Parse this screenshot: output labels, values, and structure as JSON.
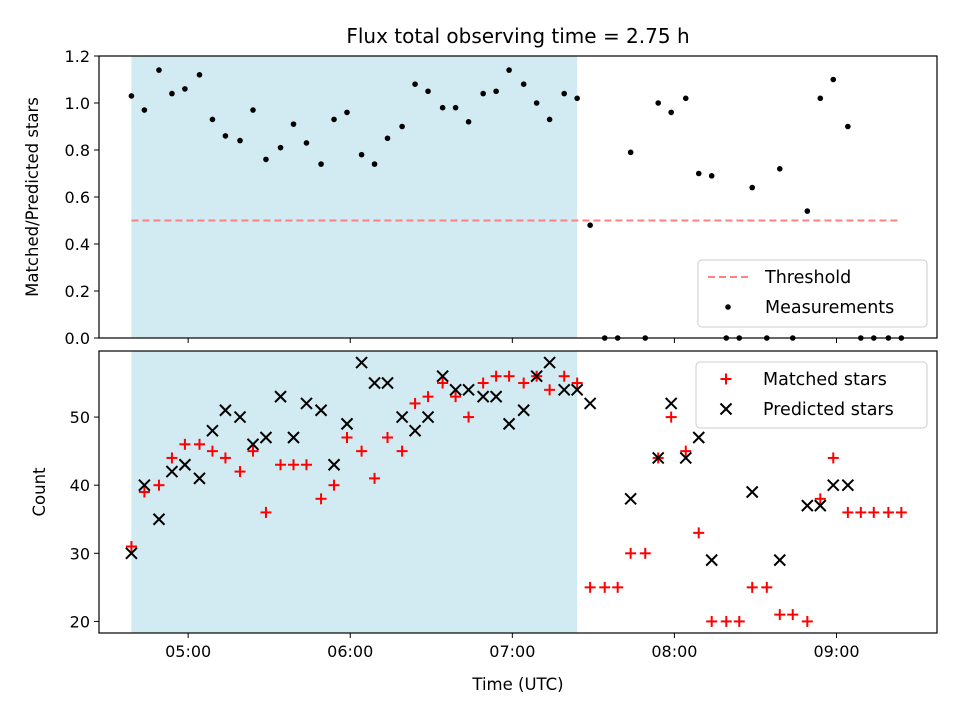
{
  "figure": {
    "title": "Flux total observing time = 2.75 h"
  },
  "colors": {
    "shade": "#add8e6",
    "threshold": "#ff8080",
    "measurements": "#000000",
    "matched": "#ff0000",
    "predicted": "#000000"
  },
  "chart_data": [
    {
      "type": "scatter",
      "ylabel": "Matched/Predicted stars",
      "ylim": [
        0,
        1.2
      ],
      "yticks": [
        0.0,
        0.2,
        0.4,
        0.6,
        0.8,
        1.0,
        1.2
      ],
      "ytick_labels": [
        "0.0",
        "0.2",
        "0.4",
        "0.6",
        "0.8",
        "1.0",
        "1.2"
      ],
      "xlim_hours": [
        4.45,
        9.62
      ],
      "xticks_hours": [
        5,
        6,
        7,
        8,
        9
      ],
      "xtick_labels_shown": false,
      "shaded_span_hours": [
        4.65,
        7.4
      ],
      "grid": false,
      "legend": {
        "placement": "lower right",
        "entries": [
          "Threshold",
          "Measurements"
        ]
      },
      "threshold": {
        "name": "Threshold",
        "value": 0.5,
        "x_range_hours": [
          4.65,
          9.38
        ],
        "style": "dashed"
      },
      "series": [
        {
          "name": "Measurements",
          "marker": "dot",
          "points": [
            [
              4.65,
              1.03
            ],
            [
              4.73,
              0.97
            ],
            [
              4.82,
              1.14
            ],
            [
              4.9,
              1.04
            ],
            [
              4.98,
              1.06
            ],
            [
              5.07,
              1.12
            ],
            [
              5.15,
              0.93
            ],
            [
              5.23,
              0.86
            ],
            [
              5.32,
              0.84
            ],
            [
              5.4,
              0.97
            ],
            [
              5.48,
              0.76
            ],
            [
              5.57,
              0.81
            ],
            [
              5.65,
              0.91
            ],
            [
              5.73,
              0.83
            ],
            [
              5.82,
              0.74
            ],
            [
              5.9,
              0.93
            ],
            [
              5.98,
              0.96
            ],
            [
              6.07,
              0.78
            ],
            [
              6.15,
              0.74
            ],
            [
              6.23,
              0.85
            ],
            [
              6.32,
              0.9
            ],
            [
              6.4,
              1.08
            ],
            [
              6.48,
              1.05
            ],
            [
              6.57,
              0.98
            ],
            [
              6.65,
              0.98
            ],
            [
              6.73,
              0.92
            ],
            [
              6.82,
              1.04
            ],
            [
              6.9,
              1.05
            ],
            [
              6.98,
              1.14
            ],
            [
              7.07,
              1.08
            ],
            [
              7.15,
              1.0
            ],
            [
              7.23,
              0.93
            ],
            [
              7.32,
              1.04
            ],
            [
              7.4,
              1.02
            ],
            [
              7.48,
              0.48
            ],
            [
              7.57,
              0.0
            ],
            [
              7.65,
              0.0
            ],
            [
              7.73,
              0.79
            ],
            [
              7.82,
              0.0
            ],
            [
              7.9,
              1.0
            ],
            [
              7.98,
              0.96
            ],
            [
              8.07,
              1.02
            ],
            [
              8.15,
              0.7
            ],
            [
              8.23,
              0.69
            ],
            [
              8.32,
              0.0
            ],
            [
              8.4,
              0.0
            ],
            [
              8.48,
              0.64
            ],
            [
              8.57,
              0.0
            ],
            [
              8.65,
              0.72
            ],
            [
              8.73,
              0.0
            ],
            [
              8.82,
              0.54
            ],
            [
              8.9,
              1.02
            ],
            [
              8.98,
              1.1
            ],
            [
              9.07,
              0.9
            ],
            [
              9.15,
              0.0
            ],
            [
              9.23,
              0.0
            ],
            [
              9.32,
              0.0
            ],
            [
              9.4,
              0.0
            ]
          ]
        }
      ]
    },
    {
      "type": "scatter",
      "xlabel": "Time (UTC)",
      "ylabel": "Count",
      "ylim": [
        18.3,
        59.7
      ],
      "yticks": [
        20,
        30,
        40,
        50
      ],
      "ytick_labels": [
        "20",
        "30",
        "40",
        "50"
      ],
      "xlim_hours": [
        4.45,
        9.62
      ],
      "xticks_hours": [
        5,
        6,
        7,
        8,
        9
      ],
      "xtick_labels": [
        "05:00",
        "06:00",
        "07:00",
        "08:00",
        "09:00"
      ],
      "shaded_span_hours": [
        4.65,
        7.4
      ],
      "grid": false,
      "legend": {
        "placement": "upper right",
        "entries": [
          "Matched stars",
          "Predicted stars"
        ]
      },
      "series": [
        {
          "name": "Matched stars",
          "marker": "plus",
          "points": [
            [
              4.65,
              31
            ],
            [
              4.73,
              39
            ],
            [
              4.82,
              40
            ],
            [
              4.9,
              44
            ],
            [
              4.98,
              46
            ],
            [
              5.07,
              46
            ],
            [
              5.15,
              45
            ],
            [
              5.23,
              44
            ],
            [
              5.32,
              42
            ],
            [
              5.4,
              45
            ],
            [
              5.48,
              36
            ],
            [
              5.57,
              43
            ],
            [
              5.65,
              43
            ],
            [
              5.73,
              43
            ],
            [
              5.82,
              38
            ],
            [
              5.9,
              40
            ],
            [
              5.98,
              47
            ],
            [
              6.07,
              45
            ],
            [
              6.15,
              41
            ],
            [
              6.23,
              47
            ],
            [
              6.32,
              45
            ],
            [
              6.4,
              52
            ],
            [
              6.48,
              53
            ],
            [
              6.57,
              55
            ],
            [
              6.65,
              53
            ],
            [
              6.73,
              50
            ],
            [
              6.82,
              55
            ],
            [
              6.9,
              56
            ],
            [
              6.98,
              56
            ],
            [
              7.07,
              55
            ],
            [
              7.15,
              56
            ],
            [
              7.23,
              54
            ],
            [
              7.32,
              56
            ],
            [
              7.4,
              55
            ],
            [
              7.48,
              25
            ],
            [
              7.57,
              25
            ],
            [
              7.65,
              25
            ],
            [
              7.73,
              30
            ],
            [
              7.82,
              30
            ],
            [
              7.9,
              44
            ],
            [
              7.98,
              50
            ],
            [
              8.07,
              45
            ],
            [
              8.15,
              33
            ],
            [
              8.23,
              20
            ],
            [
              8.32,
              20
            ],
            [
              8.4,
              20
            ],
            [
              8.48,
              25
            ],
            [
              8.57,
              25
            ],
            [
              8.65,
              21
            ],
            [
              8.73,
              21
            ],
            [
              8.82,
              20
            ],
            [
              8.9,
              38
            ],
            [
              8.98,
              44
            ],
            [
              9.07,
              36
            ],
            [
              9.15,
              36
            ],
            [
              9.23,
              36
            ],
            [
              9.32,
              36
            ],
            [
              9.4,
              36
            ]
          ]
        },
        {
          "name": "Predicted stars",
          "marker": "x",
          "points": [
            [
              4.65,
              30
            ],
            [
              4.73,
              40
            ],
            [
              4.82,
              35
            ],
            [
              4.9,
              42
            ],
            [
              4.98,
              43
            ],
            [
              5.07,
              41
            ],
            [
              5.15,
              48
            ],
            [
              5.23,
              51
            ],
            [
              5.32,
              50
            ],
            [
              5.4,
              46
            ],
            [
              5.48,
              47
            ],
            [
              5.57,
              53
            ],
            [
              5.65,
              47
            ],
            [
              5.73,
              52
            ],
            [
              5.82,
              51
            ],
            [
              5.9,
              43
            ],
            [
              5.98,
              49
            ],
            [
              6.07,
              58
            ],
            [
              6.15,
              55
            ],
            [
              6.23,
              55
            ],
            [
              6.32,
              50
            ],
            [
              6.4,
              48
            ],
            [
              6.48,
              50
            ],
            [
              6.57,
              56
            ],
            [
              6.65,
              54
            ],
            [
              6.73,
              54
            ],
            [
              6.82,
              53
            ],
            [
              6.9,
              53
            ],
            [
              6.98,
              49
            ],
            [
              7.07,
              51
            ],
            [
              7.15,
              56
            ],
            [
              7.23,
              58
            ],
            [
              7.32,
              54
            ],
            [
              7.4,
              54
            ],
            [
              7.48,
              52
            ],
            [
              7.73,
              38
            ],
            [
              7.9,
              44
            ],
            [
              7.98,
              52
            ],
            [
              8.07,
              44
            ],
            [
              8.15,
              47
            ],
            [
              8.23,
              29
            ],
            [
              8.48,
              39
            ],
            [
              8.65,
              29
            ],
            [
              8.82,
              37
            ],
            [
              8.9,
              37
            ],
            [
              8.98,
              40
            ],
            [
              9.07,
              40
            ]
          ]
        }
      ]
    }
  ]
}
